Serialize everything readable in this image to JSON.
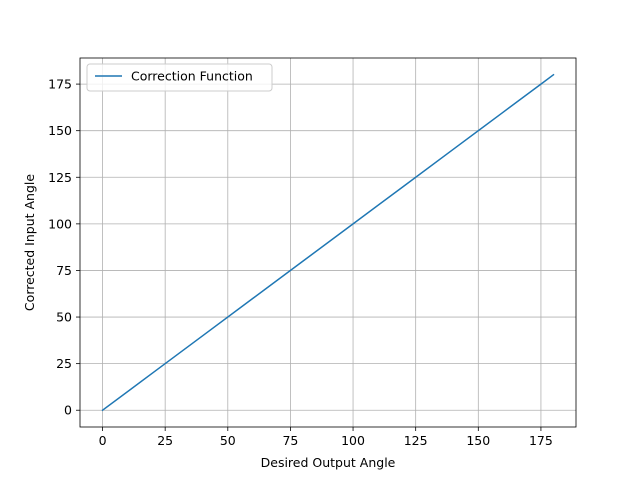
{
  "chart_data": {
    "type": "line",
    "xlabel": "Desired Output Angle",
    "ylabel": "Corrected Input Angle",
    "xlim": [
      -9,
      189
    ],
    "ylim": [
      -9,
      189
    ],
    "xticks": [
      0,
      25,
      50,
      75,
      100,
      125,
      150,
      175
    ],
    "yticks": [
      0,
      25,
      50,
      75,
      100,
      125,
      150,
      175
    ],
    "xtick_labels": [
      "0",
      "25",
      "50",
      "75",
      "100",
      "125",
      "150",
      "175"
    ],
    "ytick_labels": [
      "0",
      "25",
      "50",
      "75",
      "100",
      "125",
      "150",
      "175"
    ],
    "grid": true,
    "legend_position": "upper-left",
    "series": [
      {
        "name": "Correction Function",
        "color": "#1f77b4",
        "x": [
          0,
          20,
          40,
          60,
          80,
          100,
          120,
          140,
          160,
          175,
          180
        ],
        "y": [
          0,
          20,
          40,
          60,
          80,
          100,
          120,
          140,
          160,
          175,
          180
        ]
      }
    ]
  }
}
